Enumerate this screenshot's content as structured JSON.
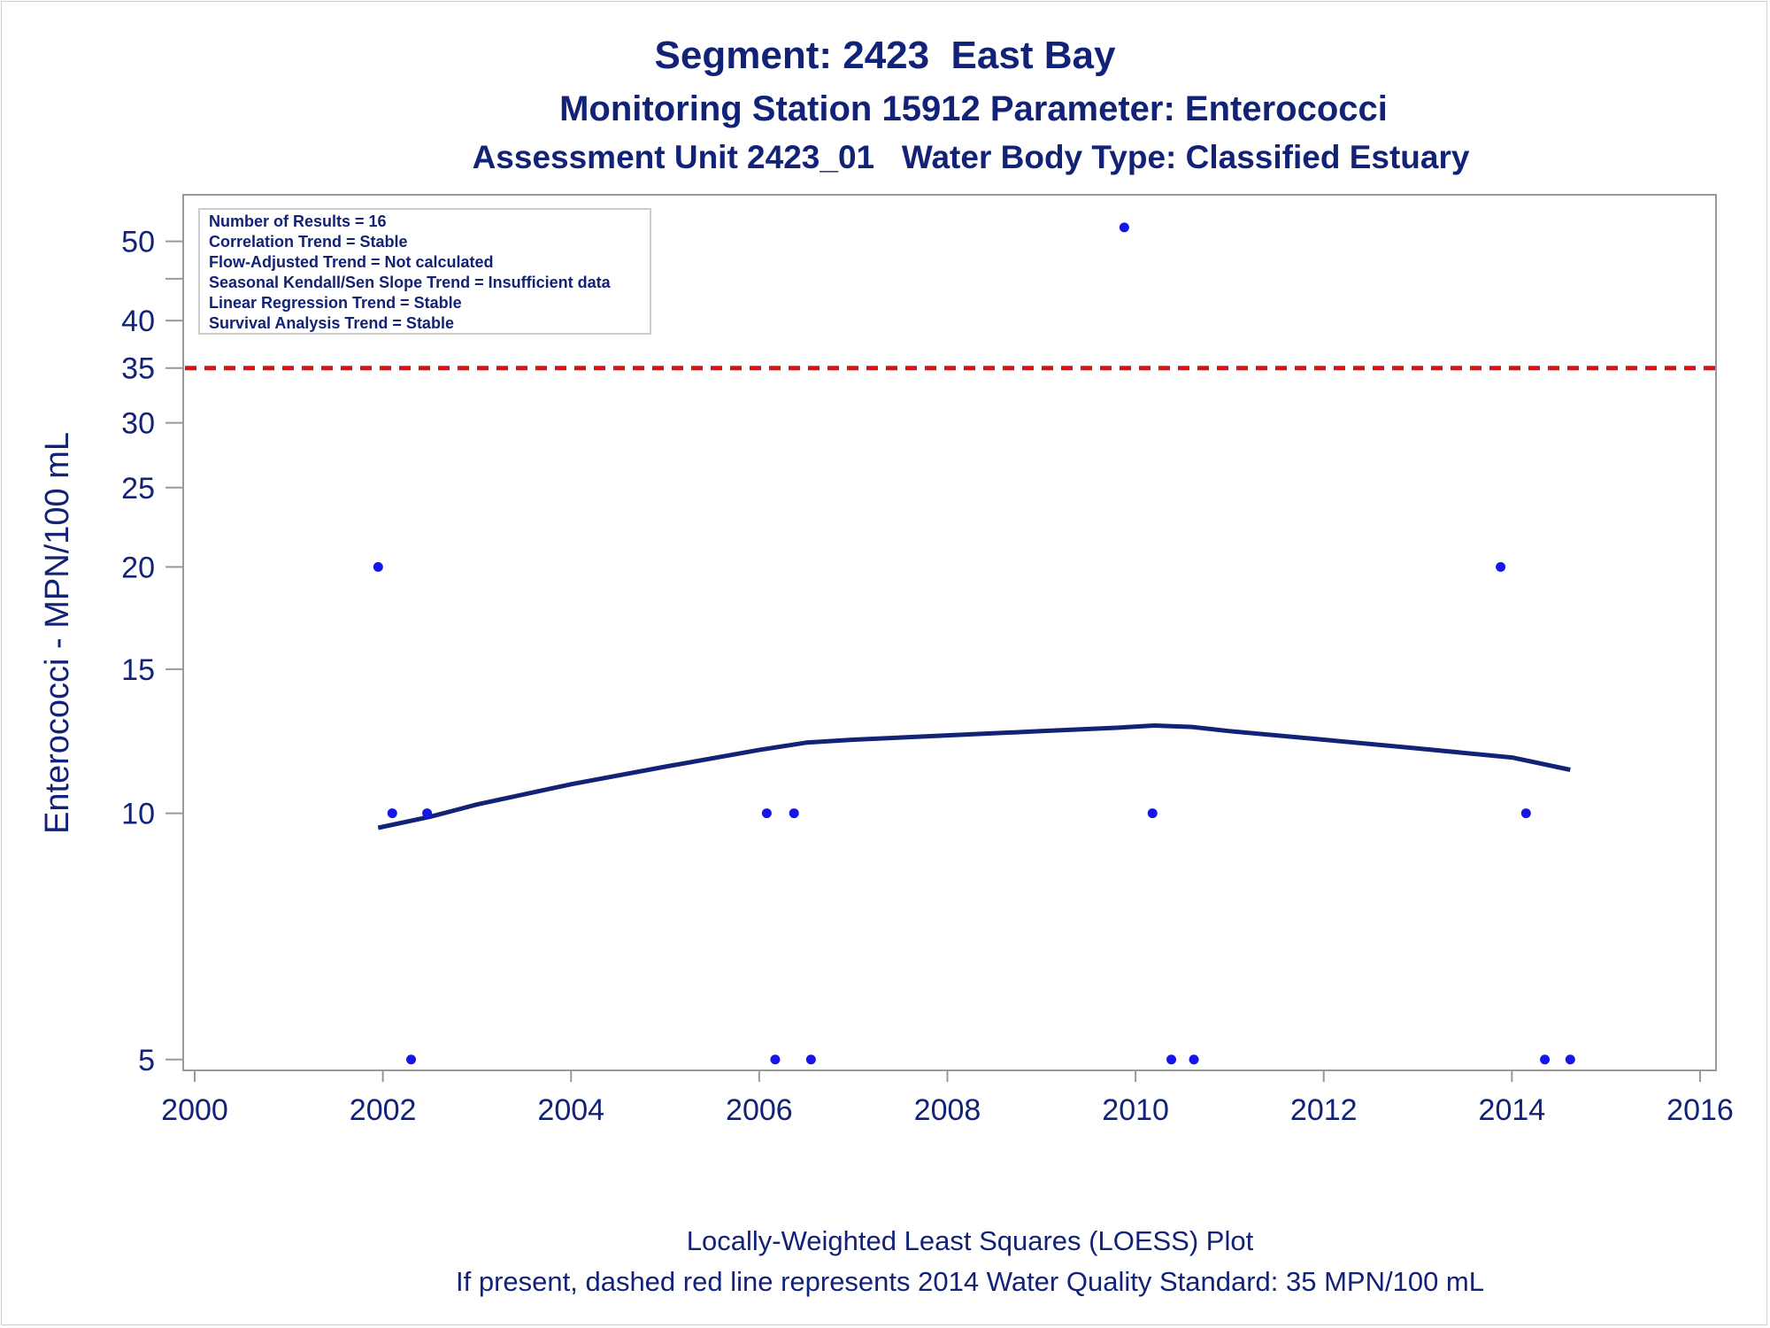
{
  "chart_data": {
    "type": "scatter",
    "title": "Segment: 2423  East Bay",
    "subtitle": "Monitoring Station 15912 Parameter: Enterococci",
    "subtitle2": "Assessment Unit 2423_01   Water Body Type: Classified Estuary",
    "ylabel": "Enterococci - MPN/100 mL",
    "y_scale": "log",
    "xlim": [
      2000,
      2016
    ],
    "ylim": [
      4.85,
      57
    ],
    "x_ticks": [
      "2000",
      "2002",
      "2004",
      "2006",
      "2008",
      "2010",
      "2012",
      "2014",
      "2016"
    ],
    "y_ticks": [
      {
        "value": 5,
        "label": "5"
      },
      {
        "value": 10,
        "label": "10"
      },
      {
        "value": 15,
        "label": "15"
      },
      {
        "value": 20,
        "label": "20"
      },
      {
        "value": 25,
        "label": "25"
      },
      {
        "value": 30,
        "label": "30"
      },
      {
        "value": 35,
        "label": "35"
      },
      {
        "value": 40,
        "label": "40"
      },
      {
        "value": 45,
        "label": ""
      },
      {
        "value": 50,
        "label": "50"
      }
    ],
    "points": [
      {
        "x": 2001.95,
        "y": 20
      },
      {
        "x": 2002.1,
        "y": 10
      },
      {
        "x": 2002.3,
        "y": 5
      },
      {
        "x": 2002.47,
        "y": 10
      },
      {
        "x": 2006.08,
        "y": 10
      },
      {
        "x": 2006.17,
        "y": 5
      },
      {
        "x": 2006.37,
        "y": 10
      },
      {
        "x": 2006.55,
        "y": 5
      },
      {
        "x": 2009.88,
        "y": 52
      },
      {
        "x": 2010.18,
        "y": 10
      },
      {
        "x": 2010.38,
        "y": 5
      },
      {
        "x": 2010.62,
        "y": 5
      },
      {
        "x": 2013.88,
        "y": 20
      },
      {
        "x": 2014.15,
        "y": 10
      },
      {
        "x": 2014.35,
        "y": 5
      },
      {
        "x": 2014.62,
        "y": 5
      }
    ],
    "loess": [
      {
        "x": 2001.95,
        "y": 9.6
      },
      {
        "x": 2002.5,
        "y": 9.9
      },
      {
        "x": 2003.0,
        "y": 10.25
      },
      {
        "x": 2004.0,
        "y": 10.85
      },
      {
        "x": 2005.0,
        "y": 11.4
      },
      {
        "x": 2006.0,
        "y": 11.95
      },
      {
        "x": 2006.5,
        "y": 12.2
      },
      {
        "x": 2007.0,
        "y": 12.3
      },
      {
        "x": 2008.0,
        "y": 12.45
      },
      {
        "x": 2009.0,
        "y": 12.6
      },
      {
        "x": 2009.8,
        "y": 12.72
      },
      {
        "x": 2010.2,
        "y": 12.8
      },
      {
        "x": 2010.6,
        "y": 12.75
      },
      {
        "x": 2011.0,
        "y": 12.6
      },
      {
        "x": 2012.0,
        "y": 12.3
      },
      {
        "x": 2013.0,
        "y": 12.0
      },
      {
        "x": 2014.0,
        "y": 11.7
      },
      {
        "x": 2014.62,
        "y": 11.3
      }
    ],
    "standard_line": {
      "y": 35,
      "style": "dashed",
      "color": "#dd1111"
    },
    "colors": {
      "points": "#1515ee",
      "loess": "#112277",
      "text": "#112277",
      "axis": "#999999"
    },
    "info_box": [
      "Number of Results = 16",
      "Correlation Trend = Stable",
      "Flow-Adjusted Trend = Not calculated",
      "Seasonal Kendall/Sen Slope Trend = Insufficient data",
      "Linear Regression Trend = Stable",
      "Survival Analysis Trend = Stable"
    ],
    "footnote1": "Locally-Weighted Least Squares (LOESS) Plot",
    "footnote2": "If present, dashed red line represents 2014 Water Quality Standard: 35 MPN/100 mL",
    "grid": false,
    "legend": "none"
  }
}
